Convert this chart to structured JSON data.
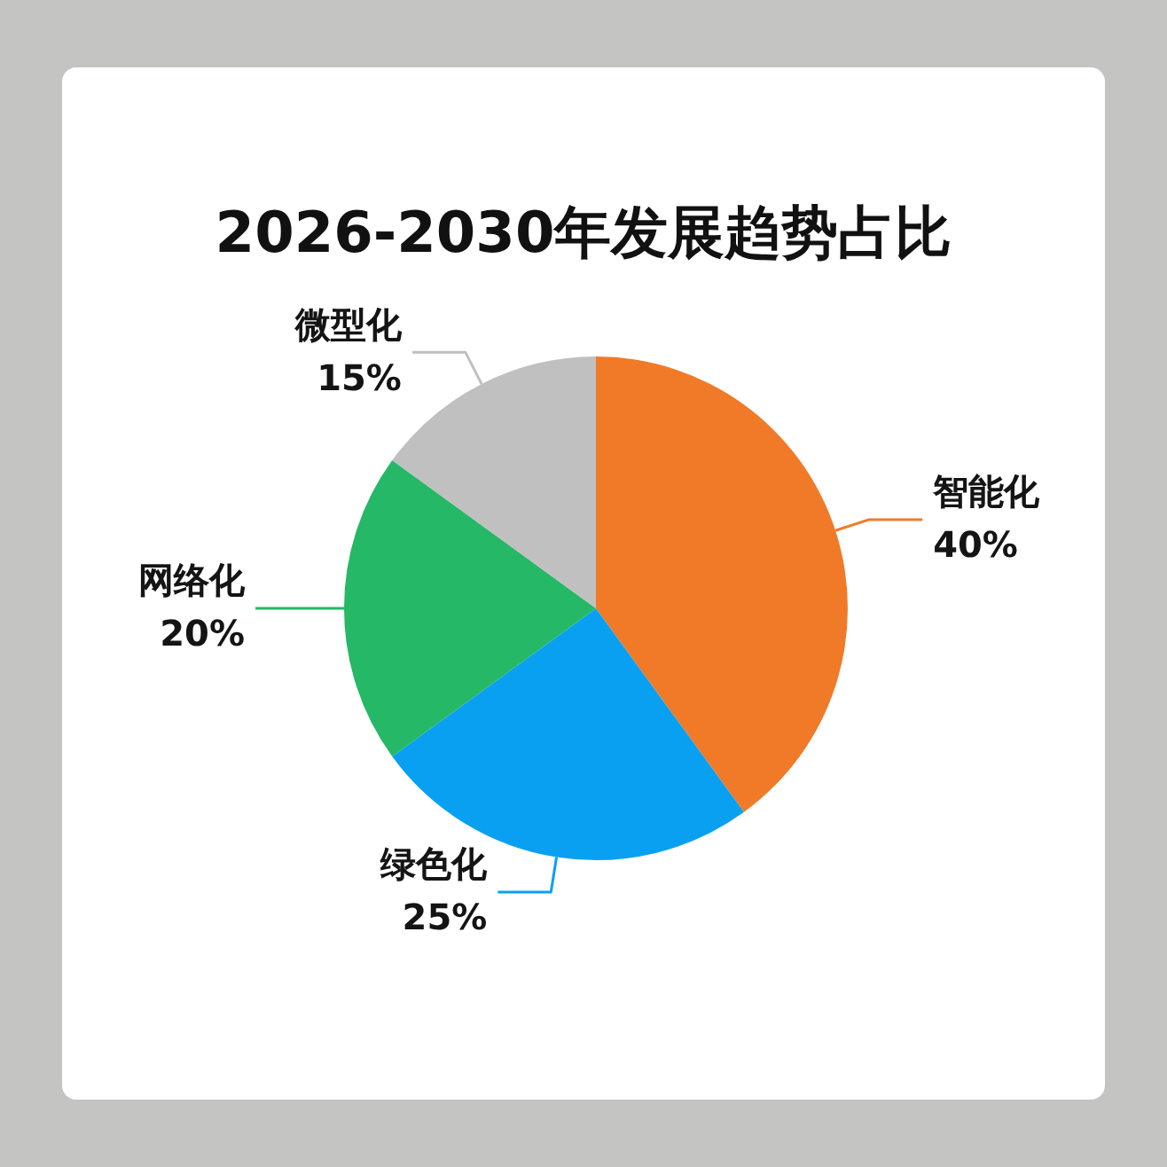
{
  "chart_data": {
    "type": "pie",
    "title": "2026-2030年发展趋势占比",
    "categories": [
      "智能化",
      "绿色化",
      "网络化",
      "微型化"
    ],
    "values": [
      40,
      25,
      20,
      15
    ],
    "colors": [
      "#f07a28",
      "#0aa0f2",
      "#25b866",
      "#c0c0c0"
    ],
    "value_labels": [
      "40%",
      "25%",
      "20%",
      "15%"
    ]
  }
}
